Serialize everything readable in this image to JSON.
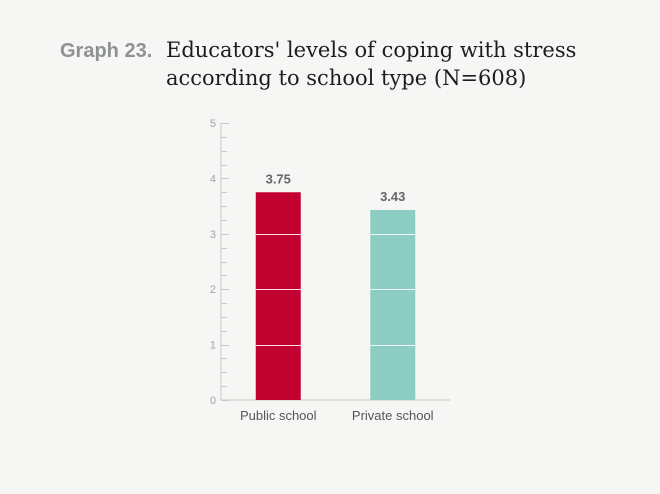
{
  "title": {
    "number": "Graph 23.",
    "text": "Educators' levels of coping with stress according to school type (N=608)"
  },
  "colors": {
    "background": "#f6f6f5",
    "axis": "#c8c8c8",
    "gridline_on_bar": "#ffffff"
  },
  "chart_data": {
    "type": "bar",
    "categories": [
      "Public school",
      "Private school"
    ],
    "values": [
      3.75,
      3.43
    ],
    "data_labels": [
      "3.75",
      "3.43"
    ],
    "colors": [
      "#c10230",
      "#8dcdc3"
    ],
    "ylim": [
      0,
      5
    ],
    "yticks": [
      0,
      1,
      2,
      3,
      4,
      5
    ],
    "minor_tick_step": 0.25,
    "title": "Educators' levels of coping with stress according to school type (N=608)",
    "xlabel": "",
    "ylabel": "",
    "grid": false,
    "legend": "none"
  }
}
